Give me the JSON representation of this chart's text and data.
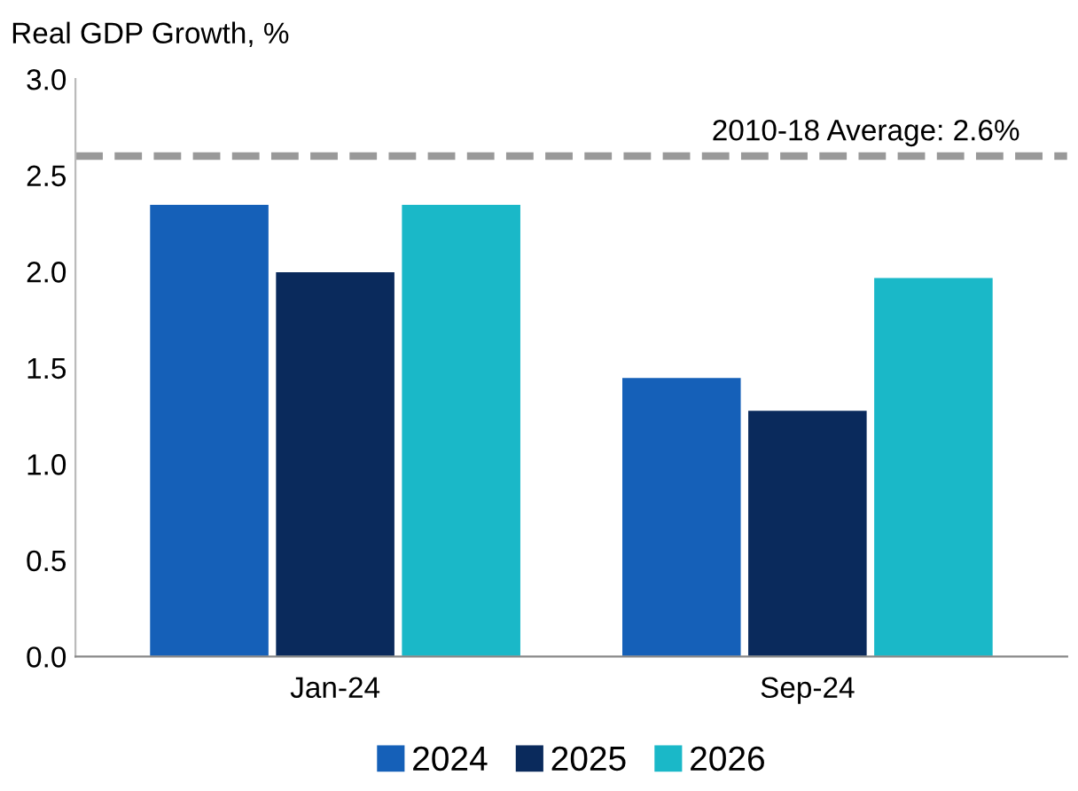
{
  "chart_data": {
    "type": "bar",
    "ylabel": "Real GDP Growth, %",
    "categories": [
      "Jan-24",
      "Sep-24"
    ],
    "series": [
      {
        "name": "2024",
        "color": "#1560b8",
        "values": [
          2.35,
          1.45
        ]
      },
      {
        "name": "2025",
        "color": "#0a2a5c",
        "values": [
          2.0,
          1.28
        ]
      },
      {
        "name": "2026",
        "color": "#1ab8c8",
        "values": [
          2.35,
          1.97
        ]
      }
    ],
    "ylim": [
      0,
      3
    ],
    "yticks": [
      {
        "value": 0,
        "label": "0.0"
      },
      {
        "value": 0.5,
        "label": "0.5"
      },
      {
        "value": 1,
        "label": "1.0"
      },
      {
        "value": 1.5,
        "label": "1.5"
      },
      {
        "value": 2,
        "label": "2.0"
      },
      {
        "value": 2.5,
        "label": "2.5"
      },
      {
        "value": 3,
        "label": "3.0"
      }
    ],
    "ref_lines": [
      {
        "axis": "y",
        "value": 2.6,
        "label": "2010-18 Average: 2.6%",
        "color": "#999999",
        "line_style": "dashed"
      }
    ],
    "legend": "bottom"
  }
}
